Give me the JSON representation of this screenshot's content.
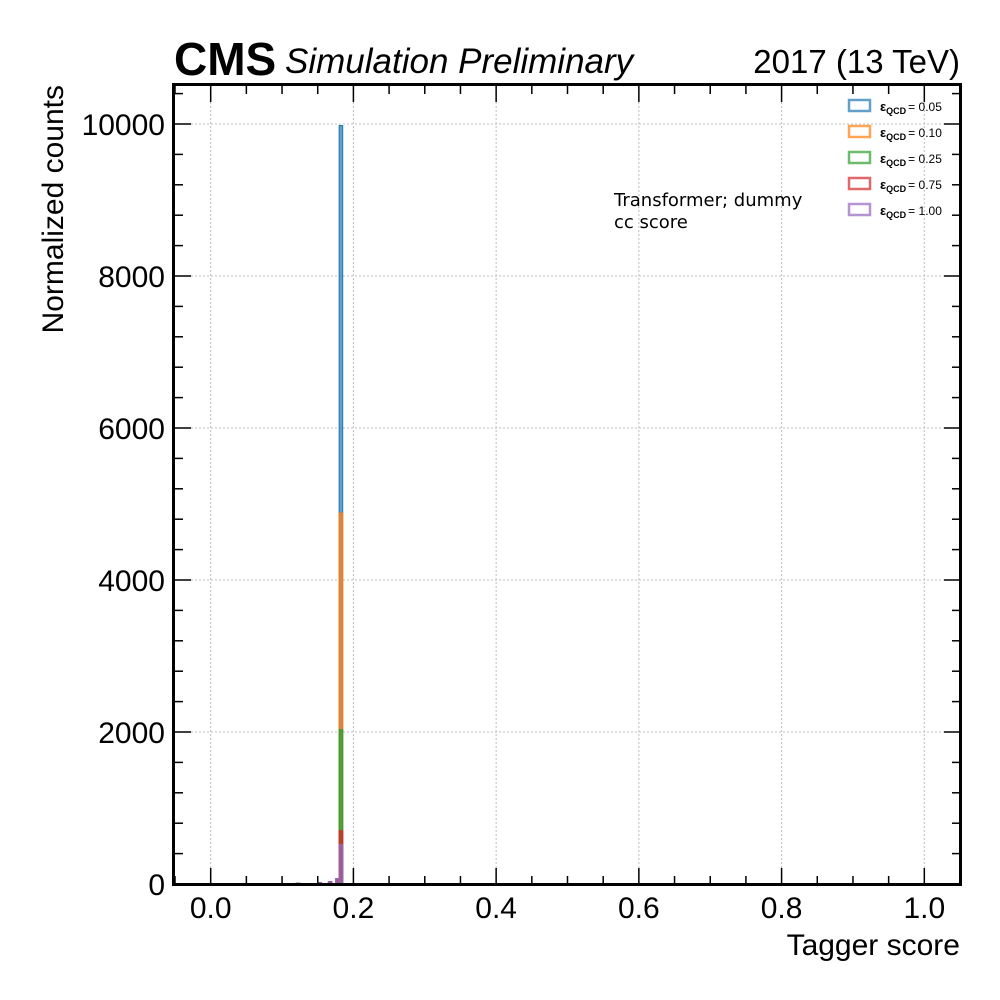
{
  "header": {
    "cms": "CMS",
    "subtitle": "Simulation Preliminary",
    "lumi": "2017 (13 TeV)"
  },
  "annotation": {
    "line1": "Transformer; dummy",
    "line2": "cc score"
  },
  "legend": {
    "eps_symbol": "ε",
    "eps_sub": "QCD"
  },
  "chart_data": {
    "type": "histogram",
    "xlabel": "Tagger score",
    "ylabel": "Normalized counts",
    "xlim": [
      -0.05,
      1.05
    ],
    "ylim": [
      0,
      10500
    ],
    "x_ticks": [
      0.0,
      0.2,
      0.4,
      0.6,
      0.8,
      1.0
    ],
    "x_tick_labels": [
      "0.0",
      "0.2",
      "0.4",
      "0.6",
      "0.8",
      "1.0"
    ],
    "y_ticks": [
      0,
      2000,
      4000,
      6000,
      8000,
      10000
    ],
    "y_tick_labels": [
      "0",
      "2000",
      "4000",
      "6000",
      "8000",
      "10000"
    ],
    "grid": true,
    "legend_position": "top-right",
    "bin_width": 0.005,
    "series": [
      {
        "name": "= 0.05",
        "color": "#1f77b4",
        "bins": [
          [
            0.12,
            10
          ],
          [
            0.15,
            20
          ],
          [
            0.165,
            30
          ],
          [
            0.175,
            60
          ],
          [
            0.18,
            9980
          ]
        ]
      },
      {
        "name": "= 0.10",
        "color": "#ff7f0e",
        "bins": [
          [
            0.12,
            10
          ],
          [
            0.15,
            20
          ],
          [
            0.165,
            30
          ],
          [
            0.175,
            60
          ],
          [
            0.18,
            4880
          ]
        ]
      },
      {
        "name": "= 0.25",
        "color": "#2ca02c",
        "bins": [
          [
            0.12,
            10
          ],
          [
            0.15,
            20
          ],
          [
            0.165,
            30
          ],
          [
            0.175,
            60
          ],
          [
            0.18,
            2030
          ]
        ]
      },
      {
        "name": "= 0.75",
        "color": "#d62728",
        "bins": [
          [
            0.12,
            10
          ],
          [
            0.15,
            20
          ],
          [
            0.165,
            30
          ],
          [
            0.175,
            70
          ],
          [
            0.18,
            700
          ]
        ]
      },
      {
        "name": "= 1.00",
        "color": "#9467bd",
        "bins": [
          [
            0.12,
            10
          ],
          [
            0.15,
            20
          ],
          [
            0.165,
            30
          ],
          [
            0.175,
            70
          ],
          [
            0.18,
            520
          ]
        ]
      }
    ]
  }
}
